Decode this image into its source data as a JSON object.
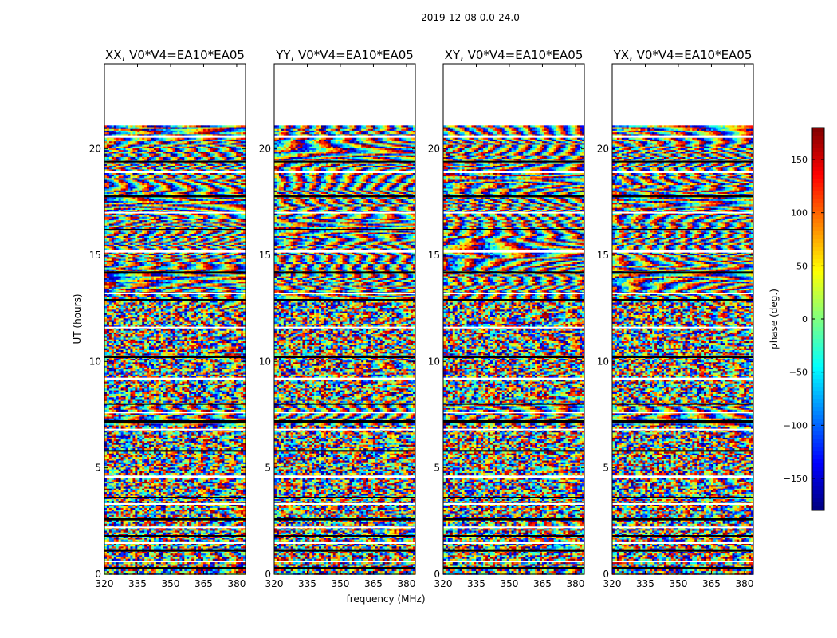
{
  "figure_title": "2019-12-08 0.0-24.0",
  "x_label": "frequency (MHz)",
  "y_label": "UT (hours)",
  "colorbar_label": "phase (deg.)",
  "chart_data": [
    {
      "type": "heatmap",
      "title": "XX, V0*V4=EA10*EA05",
      "xlabel": "frequency (MHz)",
      "ylabel": "UT (hours)",
      "xlim": [
        320,
        384
      ],
      "ylim": [
        0,
        24
      ],
      "xticks": [
        320,
        335,
        350,
        365,
        380
      ],
      "yticks": [
        0,
        5,
        10,
        15,
        20
      ],
      "data_extent_hours": [
        0,
        21.1
      ],
      "value_range": [
        -180,
        180
      ],
      "colormap": "jet"
    },
    {
      "type": "heatmap",
      "title": "YY, V0*V4=EA10*EA05",
      "xlabel": "frequency (MHz)",
      "ylabel": "UT (hours)",
      "xlim": [
        320,
        384
      ],
      "ylim": [
        0,
        24
      ],
      "xticks": [
        320,
        335,
        350,
        365,
        380
      ],
      "yticks": [
        0,
        5,
        10,
        15,
        20
      ],
      "data_extent_hours": [
        0,
        21.1
      ],
      "value_range": [
        -180,
        180
      ],
      "colormap": "jet"
    },
    {
      "type": "heatmap",
      "title": "XY, V0*V4=EA10*EA05",
      "xlabel": "frequency (MHz)",
      "ylabel": "UT (hours)",
      "xlim": [
        320,
        384
      ],
      "ylim": [
        0,
        24
      ],
      "xticks": [
        320,
        335,
        350,
        365,
        380
      ],
      "yticks": [
        0,
        5,
        10,
        15,
        20
      ],
      "data_extent_hours": [
        0,
        21.1
      ],
      "value_range": [
        -180,
        180
      ],
      "colormap": "jet"
    },
    {
      "type": "heatmap",
      "title": "YX, V0*V4=EA10*EA05",
      "xlabel": "frequency (MHz)",
      "ylabel": "UT (hours)",
      "xlim": [
        320,
        384
      ],
      "ylim": [
        0,
        24
      ],
      "xticks": [
        320,
        335,
        350,
        365,
        380
      ],
      "yticks": [
        0,
        5,
        10,
        15,
        20
      ],
      "data_extent_hours": [
        0,
        21.1
      ],
      "value_range": [
        -180,
        180
      ],
      "colormap": "jet"
    }
  ],
  "colorbar": {
    "label": "phase (deg.)",
    "min": -180,
    "max": 180,
    "ticks": [
      -150,
      -100,
      -50,
      0,
      50,
      100,
      150
    ],
    "tick_labels": [
      "−150",
      "−100",
      "−50",
      "0",
      "50",
      "100",
      "150"
    ]
  }
}
